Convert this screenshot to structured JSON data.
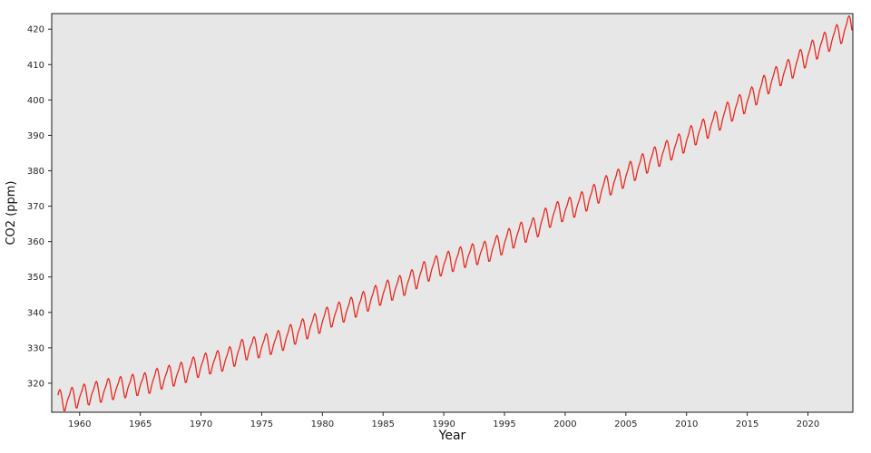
{
  "chart_data": {
    "type": "line",
    "title": "",
    "xlabel": "Year",
    "ylabel": "CO2 (ppm)",
    "grid": false,
    "legend": false,
    "panel_bg": "#e7e7e7",
    "spine_color": "#1a1a1a",
    "tick_color": "#262626",
    "line_color": "#e8281e",
    "xlim": [
      1957.7,
      2023.7
    ],
    "ylim": [
      311.8,
      424.4
    ],
    "x_ticks": [
      1960,
      1965,
      1970,
      1975,
      1980,
      1985,
      1990,
      1995,
      2000,
      2005,
      2010,
      2015,
      2020
    ],
    "y_ticks": [
      320,
      330,
      340,
      350,
      360,
      370,
      380,
      390,
      400,
      410,
      420
    ],
    "first_year": 1958,
    "start_month": 3,
    "end_month": 8,
    "series": [
      {
        "name": "co2_ppm_monthly",
        "annual_means": [
          315.2,
          315.97,
          316.91,
          317.64,
          318.45,
          318.99,
          319.62,
          320.04,
          321.37,
          322.18,
          323.05,
          324.62,
          325.68,
          326.32,
          327.46,
          329.68,
          330.19,
          331.12,
          332.03,
          333.84,
          335.41,
          336.84,
          338.76,
          340.12,
          341.48,
          343.15,
          344.87,
          346.35,
          347.61,
          349.31,
          351.69,
          353.2,
          354.45,
          355.7,
          356.54,
          357.21,
          358.96,
          360.97,
          362.74,
          363.88,
          366.84,
          368.54,
          369.71,
          371.32,
          373.45,
          375.98,
          377.7,
          379.98,
          382.09,
          384.02,
          385.83,
          387.64,
          390.1,
          391.85,
          394.06,
          396.74,
          398.81,
          401.01,
          404.41,
          406.76,
          408.72,
          411.66,
          414.24,
          416.45,
          418.56,
          421.08
        ],
        "seasonal_offsets": [
          0.0,
          0.66,
          1.4,
          2.54,
          3.0,
          2.34,
          0.64,
          -1.41,
          -3.15,
          -3.22,
          -2.05,
          -0.9
        ]
      }
    ]
  }
}
